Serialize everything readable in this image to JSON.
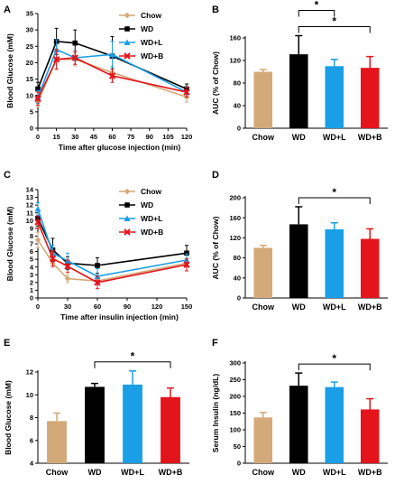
{
  "colors": {
    "chow": "#d4a979",
    "wd": "#000000",
    "wdl": "#1a9fe6",
    "wdb": "#e3141b"
  },
  "legend": [
    "Chow",
    "WD",
    "WD+L",
    "WD+B"
  ],
  "chart_data": [
    {
      "panel": "A",
      "type": "line",
      "xlabel": "Time after glucose injection (min)",
      "ylabel": "Blood Glucose (mM)",
      "x": [
        0,
        15,
        30,
        60,
        120
      ],
      "xticks": [
        0,
        15,
        30,
        45,
        60,
        75,
        90,
        105,
        120
      ],
      "xlim": [
        0,
        120
      ],
      "yticks": [
        0,
        5,
        10,
        15,
        20,
        25,
        30,
        35
      ],
      "ylim": [
        0,
        35
      ],
      "legend_position": "top-right",
      "series": [
        {
          "name": "Chow",
          "marker": "diamond",
          "color": "chow",
          "values": [
            8,
            21,
            21,
            17,
            9.5
          ],
          "err": [
            1.5,
            3,
            2,
            2,
            1.5
          ]
        },
        {
          "name": "WD",
          "marker": "square",
          "color": "wd",
          "values": [
            12,
            26.5,
            26,
            22,
            12
          ],
          "err": [
            2,
            4,
            4,
            6,
            1.5
          ]
        },
        {
          "name": "WD+L",
          "marker": "triangle",
          "color": "wdl",
          "values": [
            9.5,
            24,
            21.5,
            22.5,
            11
          ],
          "err": [
            2,
            3,
            2,
            4,
            1.5
          ]
        },
        {
          "name": "WD+B",
          "marker": "x",
          "color": "wdb",
          "values": [
            9,
            21,
            21.5,
            16,
            11
          ],
          "err": [
            2,
            3,
            2,
            2,
            1.5
          ]
        }
      ]
    },
    {
      "panel": "B",
      "type": "bar",
      "ylabel": "AUC (% of Chow)",
      "categories": [
        "Chow",
        "WD",
        "WD+L",
        "WD+B"
      ],
      "values": [
        100,
        131,
        110,
        107
      ],
      "err": [
        4,
        33,
        12,
        20
      ],
      "yticks": [
        0,
        40,
        80,
        120,
        160
      ],
      "ylim": [
        0,
        160
      ],
      "sig": [
        {
          "from": 1,
          "to": 3,
          "label": "*"
        },
        {
          "from": 1,
          "to": 2,
          "label": "*"
        }
      ]
    },
    {
      "panel": "C",
      "type": "line",
      "xlabel": "Time after insulin injection (min)",
      "ylabel": "Blood Glucose (mM)",
      "x": [
        0,
        15,
        30,
        60,
        150
      ],
      "xticks": [
        0,
        30,
        60,
        90,
        120,
        150
      ],
      "xlim": [
        0,
        150
      ],
      "yticks": [
        0,
        1,
        2,
        3,
        4,
        5,
        6,
        7,
        8,
        9,
        10,
        11,
        12,
        13,
        14
      ],
      "ylim": [
        0,
        14
      ],
      "legend_position": "top-right",
      "series": [
        {
          "name": "Chow",
          "marker": "diamond",
          "color": "chow",
          "values": [
            7.5,
            4.5,
            2.5,
            2.2,
            4.5
          ],
          "err": [
            1,
            0.5,
            0.5,
            0.5,
            0.5
          ]
        },
        {
          "name": "WD",
          "marker": "square",
          "color": "wd",
          "values": [
            10.3,
            6.2,
            4.5,
            4.2,
            5.8
          ],
          "err": [
            1,
            1.5,
            0.8,
            1,
            1
          ]
        },
        {
          "name": "WD+L",
          "marker": "triangle",
          "color": "wdl",
          "values": [
            11.5,
            5.8,
            4.8,
            2.8,
            4.9
          ],
          "err": [
            0.8,
            1,
            1,
            1,
            0.8
          ]
        },
        {
          "name": "WD+B",
          "marker": "x",
          "color": "wdb",
          "values": [
            9.8,
            5.1,
            4.1,
            2,
            4.3
          ],
          "err": [
            0.8,
            1,
            0.8,
            0.8,
            0.8
          ]
        }
      ]
    },
    {
      "panel": "D",
      "type": "bar",
      "ylabel": "AUC (% of Chow)",
      "categories": [
        "Chow",
        "WD",
        "WD+L",
        "WD+B"
      ],
      "values": [
        100,
        147,
        137,
        118
      ],
      "err": [
        5,
        35,
        13,
        20
      ],
      "yticks": [
        0,
        40,
        80,
        120,
        160,
        200
      ],
      "ylim": [
        0,
        200
      ],
      "sig": [
        {
          "from": 1,
          "to": 3,
          "label": "*"
        }
      ]
    },
    {
      "panel": "E",
      "type": "bar",
      "ylabel": "Blood Glucose (mM)",
      "categories": [
        "Chow",
        "WD",
        "WD+L",
        "WD+B"
      ],
      "values": [
        7.7,
        10.7,
        10.9,
        9.8
      ],
      "err": [
        0.7,
        0.3,
        1.2,
        0.8
      ],
      "yticks": [
        4,
        6,
        8,
        10,
        12
      ],
      "ylim": [
        4,
        12
      ],
      "sig": [
        {
          "from": 1,
          "to": 3,
          "label": "*"
        }
      ]
    },
    {
      "panel": "F",
      "type": "bar",
      "ylabel": "Serum Insulin (ng/dL)",
      "categories": [
        "Chow",
        "WD",
        "WD+L",
        "WD+B"
      ],
      "values": [
        137,
        232,
        228,
        161
      ],
      "err": [
        15,
        38,
        15,
        32
      ],
      "yticks": [
        0,
        50,
        100,
        150,
        200,
        250,
        300
      ],
      "ylim": [
        0,
        300
      ],
      "sig": [
        {
          "from": 1,
          "to": 3,
          "label": "*"
        }
      ]
    }
  ]
}
